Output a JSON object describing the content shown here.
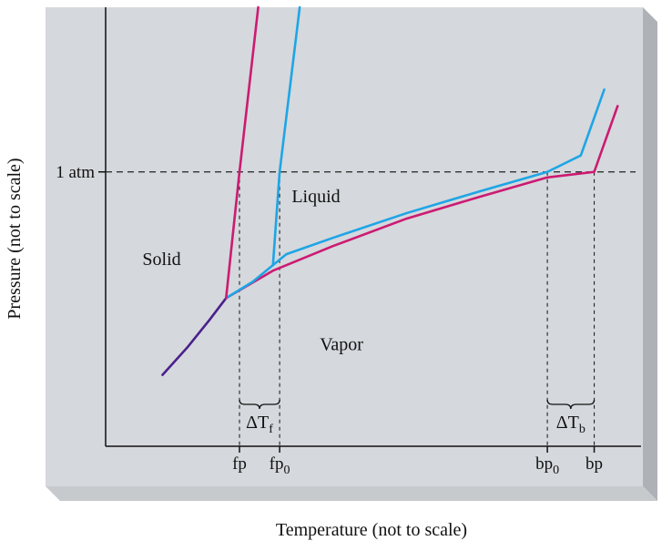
{
  "chart_data": {
    "type": "line",
    "xlabel": "Temperature (not to scale)",
    "ylabel": "Pressure (not to scale)",
    "y_reference": {
      "label": "1 atm",
      "value": 1.0,
      "style": "dashed"
    },
    "x_markers": [
      {
        "id": "fp",
        "label": "fp",
        "sub": "",
        "x": 2.0
      },
      {
        "id": "fp0",
        "label": "fp",
        "sub": "0",
        "x": 2.6
      },
      {
        "id": "bp0",
        "label": "bp",
        "sub": "0",
        "x": 6.6
      },
      {
        "id": "bp",
        "label": "bp",
        "sub": "",
        "x": 7.3
      }
    ],
    "intervals": [
      {
        "id": "delta-tf",
        "from": "fp",
        "to": "fp0",
        "label": "ΔT",
        "sub": "f"
      },
      {
        "id": "delta-tb",
        "from": "bp0",
        "to": "bp",
        "label": "ΔT",
        "sub": "b"
      }
    ],
    "regions": [
      {
        "id": "solid",
        "label": "Solid",
        "x": 0.55,
        "y": 0.66
      },
      {
        "id": "liquid",
        "label": "Liquid",
        "x": 2.78,
        "y": 0.89
      },
      {
        "id": "vapor",
        "label": "Vapor",
        "x": 3.2,
        "y": 0.35
      }
    ],
    "series": [
      {
        "id": "sublimation-curve",
        "color": "#4b1f8c",
        "points": [
          [
            0.85,
            0.26
          ],
          [
            1.22,
            0.36
          ],
          [
            1.55,
            0.46
          ],
          [
            1.8,
            0.54
          ]
        ]
      },
      {
        "id": "vapor-pressure-solution",
        "color": "#cc1a72",
        "points": [
          [
            1.8,
            0.54
          ],
          [
            2.5,
            0.64
          ],
          [
            3.4,
            0.73
          ],
          [
            4.5,
            0.83
          ],
          [
            5.6,
            0.91
          ],
          [
            6.6,
            0.98
          ],
          [
            7.3,
            1.0
          ],
          [
            7.65,
            1.24
          ]
        ]
      },
      {
        "id": "vapor-pressure-solvent",
        "color": "#1ea5e6",
        "points": [
          [
            1.8,
            0.54
          ],
          [
            2.2,
            0.6
          ],
          [
            2.5,
            0.66
          ],
          [
            2.7,
            0.7
          ],
          [
            3.4,
            0.76
          ],
          [
            4.5,
            0.85
          ],
          [
            5.6,
            0.93
          ],
          [
            6.6,
            1.0
          ],
          [
            7.1,
            1.06
          ],
          [
            7.45,
            1.3
          ]
        ]
      },
      {
        "id": "fusion-curve-solution",
        "color": "#cc1a72",
        "points": [
          [
            1.8,
            0.54
          ],
          [
            2.0,
            1.0
          ],
          [
            2.28,
            1.6
          ]
        ]
      },
      {
        "id": "fusion-curve-solvent",
        "color": "#1ea5e6",
        "points": [
          [
            2.5,
            0.66
          ],
          [
            2.6,
            1.0
          ],
          [
            2.9,
            1.6
          ]
        ]
      }
    ],
    "xlim": [
      0,
      8
    ],
    "ylim": [
      0,
      1.6
    ],
    "grid": false,
    "legend": "none"
  },
  "colors": {
    "panel": "#d5d8dc",
    "shade_right": "#aeb2b6",
    "shade_bottom": "#c7cacd",
    "axis": "#111111"
  }
}
